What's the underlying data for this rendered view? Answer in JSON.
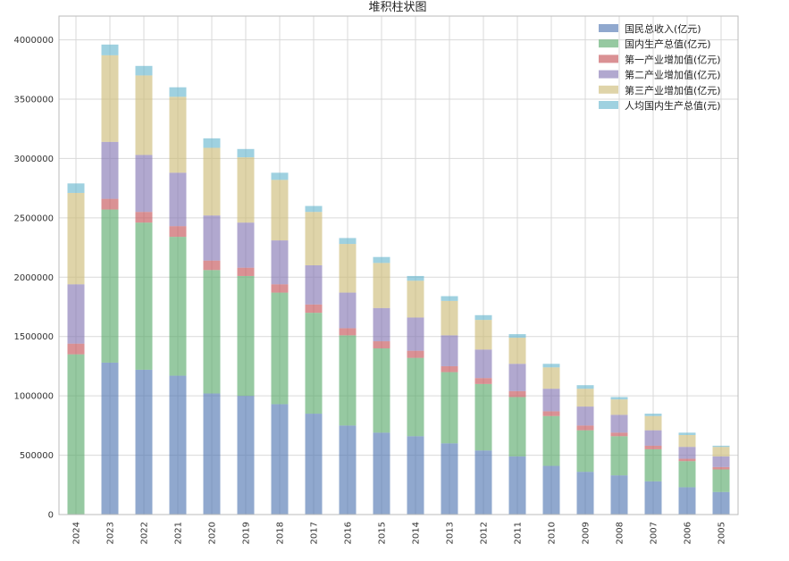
{
  "chart_data": {
    "type": "bar",
    "stacked": true,
    "title": "堆积柱状图",
    "xlabel": "",
    "ylabel": "",
    "ylim": [
      0,
      4200000
    ],
    "yticks": [
      0,
      500000,
      1000000,
      1500000,
      2000000,
      2500000,
      3000000,
      3500000,
      4000000
    ],
    "ytick_labels": [
      "0",
      "500000",
      "1000000",
      "1500000",
      "2000000",
      "2500000",
      "3000000",
      "3500000",
      "4000000"
    ],
    "grid": true,
    "legend_position": "top-right",
    "categories": [
      "2024",
      "2023",
      "2022",
      "2021",
      "2020",
      "2019",
      "2018",
      "2017",
      "2016",
      "2015",
      "2014",
      "2013",
      "2012",
      "2011",
      "2010",
      "2009",
      "2008",
      "2007",
      "2006",
      "2005"
    ],
    "series": [
      {
        "name": "国民总收入(亿元)",
        "color": "#4c72b0",
        "values": [
          0,
          1280000,
          1220000,
          1170000,
          1020000,
          1000000,
          930000,
          850000,
          750000,
          690000,
          660000,
          600000,
          540000,
          490000,
          410000,
          360000,
          330000,
          280000,
          230000,
          190000
        ]
      },
      {
        "name": "国内生产总值(亿元)",
        "color": "#55a868",
        "values": [
          1350000,
          1290000,
          1240000,
          1170000,
          1040000,
          1010000,
          940000,
          850000,
          760000,
          710000,
          660000,
          600000,
          560000,
          500000,
          420000,
          350000,
          330000,
          270000,
          220000,
          190000
        ]
      },
      {
        "name": "第一产业增加值(亿元)",
        "color": "#c44e52",
        "values": [
          90000,
          90000,
          90000,
          90000,
          80000,
          70000,
          70000,
          70000,
          60000,
          60000,
          60000,
          50000,
          50000,
          50000,
          40000,
          40000,
          30000,
          30000,
          20000,
          20000
        ]
      },
      {
        "name": "第二产业增加值(亿元)",
        "color": "#8172b2",
        "values": [
          500000,
          480000,
          480000,
          450000,
          380000,
          380000,
          370000,
          330000,
          300000,
          280000,
          280000,
          260000,
          240000,
          230000,
          190000,
          160000,
          150000,
          130000,
          100000,
          90000
        ]
      },
      {
        "name": "第三产业增加值(亿元)",
        "color": "#ccb974",
        "values": [
          770000,
          730000,
          670000,
          640000,
          570000,
          550000,
          510000,
          450000,
          410000,
          380000,
          310000,
          290000,
          250000,
          220000,
          180000,
          150000,
          130000,
          120000,
          100000,
          80000
        ]
      },
      {
        "name": "人均国内生产总值(元)",
        "color": "#64b5cd",
        "values": [
          80000,
          90000,
          80000,
          80000,
          80000,
          70000,
          60000,
          50000,
          50000,
          50000,
          40000,
          40000,
          40000,
          30000,
          30000,
          30000,
          20000,
          20000,
          20000,
          10000
        ]
      }
    ]
  }
}
